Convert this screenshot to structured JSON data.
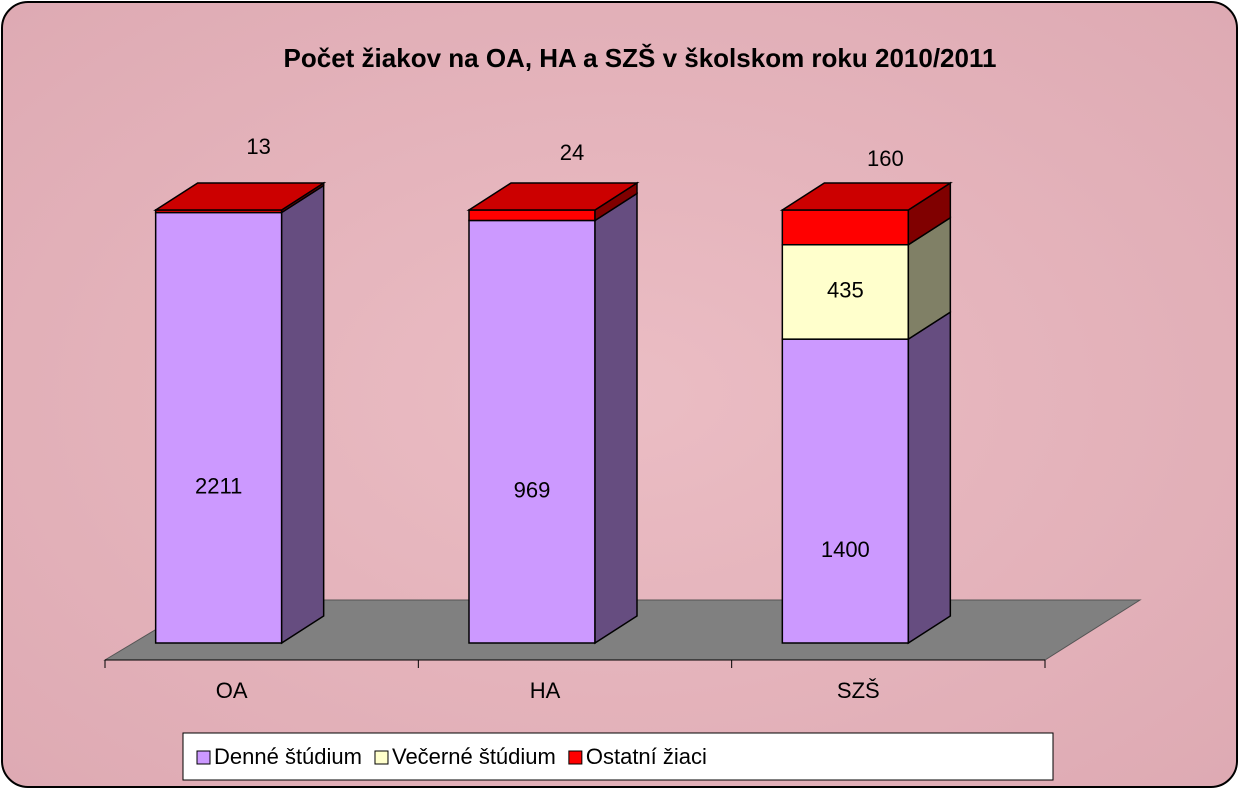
{
  "chart_data": {
    "type": "bar",
    "stacking": "percent",
    "title": "Počet žiakov na OA, HA a SZŠ v školskom roku 2010/2011",
    "categories": [
      "OA",
      "HA",
      "SZŠ"
    ],
    "series": [
      {
        "name": "Denné štúdium",
        "color": "#cc99ff",
        "values": [
          2211,
          969,
          1400
        ]
      },
      {
        "name": "Večerné štúdium",
        "color": "#ffffcc",
        "values": [
          null,
          null,
          435
        ]
      },
      {
        "name": "Ostatní žiaci",
        "color": "#ff0000",
        "values": [
          13,
          24,
          160
        ]
      }
    ],
    "legend": "bottom"
  }
}
